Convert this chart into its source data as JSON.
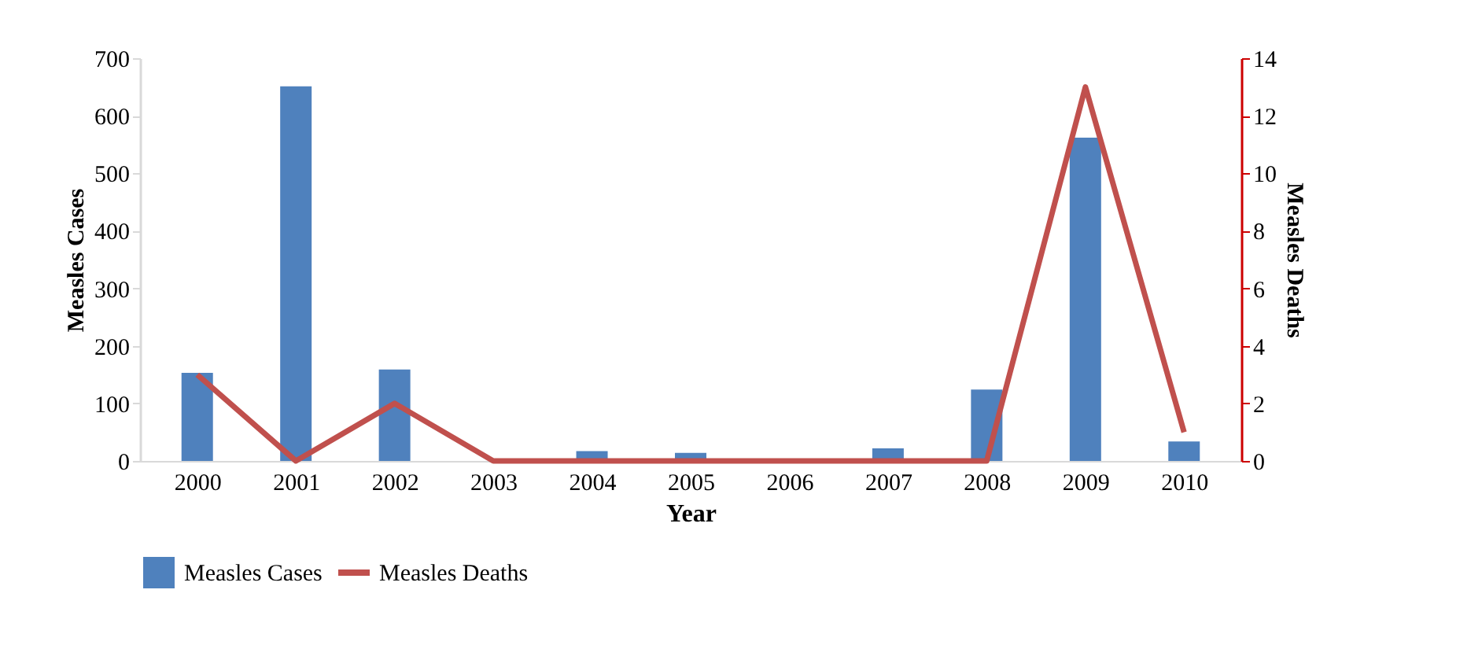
{
  "chart_data": {
    "type": "bar",
    "xlabel": "Year",
    "ylabel": "Measles Cases",
    "y2label": "Measles Deaths",
    "categories": [
      "2000",
      "2001",
      "2002",
      "2003",
      "2004",
      "2005",
      "2006",
      "2007",
      "2008",
      "2009",
      "2010"
    ],
    "series": [
      {
        "name": "Measles Cases",
        "color": "#4f81bd",
        "values": [
          153,
          651,
          159,
          0,
          17,
          14,
          0,
          22,
          124,
          562,
          34
        ]
      },
      {
        "name": "Measles Deaths",
        "color": "#c0504d",
        "type": "line",
        "axis": "y2",
        "values": [
          3,
          0,
          2,
          0,
          0,
          0,
          0,
          0,
          0,
          13,
          1
        ]
      }
    ],
    "ylim": [
      0,
      700
    ],
    "yticks": [
      0,
      100,
      200,
      300,
      400,
      500,
      600,
      700
    ],
    "y2lim": [
      0,
      14
    ],
    "y2ticks": [
      0,
      2,
      4,
      6,
      8,
      10,
      12,
      14
    ],
    "legend": "bottom",
    "grid": false
  }
}
